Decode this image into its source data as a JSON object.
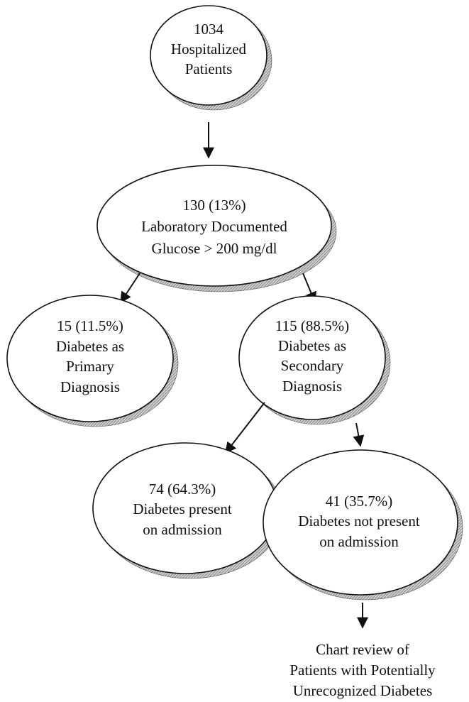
{
  "nodes": {
    "hospitalized": {
      "lines": [
        "1034",
        "Hospitalized",
        "Patients"
      ]
    },
    "glucose": {
      "lines": [
        "130 (13%)",
        "Laboratory Documented",
        "Glucose > 200 mg/dl"
      ]
    },
    "primary": {
      "lines": [
        "15 (11.5%)",
        "Diabetes as",
        "Primary",
        "Diagnosis"
      ]
    },
    "secondary": {
      "lines": [
        "115 (88.5%)",
        "Diabetes as",
        "Secondary",
        "Diagnosis"
      ]
    },
    "present": {
      "lines": [
        "74 (64.3%)",
        "Diabetes present",
        "on admission"
      ]
    },
    "not_present": {
      "lines": [
        "41 (35.7%)",
        "Diabetes  not present",
        "on admission"
      ]
    },
    "chart_review": {
      "lines": [
        "Chart review of",
        "Patients with Potentially",
        "Unrecognized Diabetes"
      ]
    }
  },
  "colors": {
    "ink": "#111111",
    "shadow": "#9a9a9a"
  }
}
